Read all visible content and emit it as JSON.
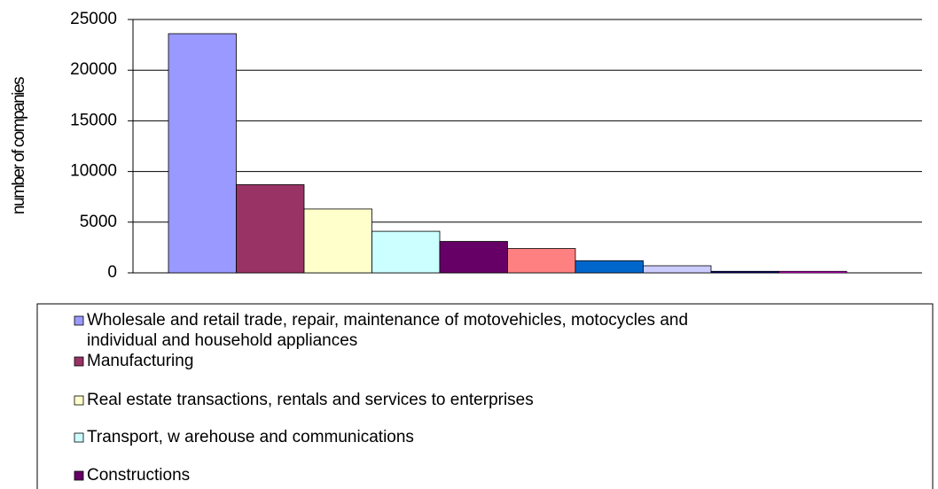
{
  "chart_data": {
    "type": "bar",
    "y_label": "number of companies",
    "categories": [
      null
    ],
    "series": [
      {
        "name": "Wholesale and retail trade, repair, maintenance of motovehicles, motocycles and individual and household appliances",
        "color": "#9999ff",
        "values": [
          23600
        ]
      },
      {
        "name": "Manufacturing",
        "color": "#993366",
        "values": [
          8700
        ]
      },
      {
        "name": "Real estate transactions, rentals and services to enterprises",
        "color": "#ffffcc",
        "values": [
          6300
        ]
      },
      {
        "name": "Transport, w arehouse and communications",
        "color": "#ccffff",
        "values": [
          4100
        ]
      },
      {
        "name": "Constructions",
        "color": "#660066",
        "values": [
          3100
        ]
      },
      {
        "color": "#ff8080",
        "values": [
          2400
        ]
      },
      {
        "color": "#0066cc",
        "values": [
          1200
        ]
      },
      {
        "color": "#ccccff",
        "values": [
          700
        ]
      },
      {
        "color": "#000080",
        "values": [
          150
        ]
      },
      {
        "color": "#ff00ff",
        "values": [
          150
        ]
      }
    ],
    "ylim": [
      0,
      25000
    ],
    "yticks": [
      0,
      5000,
      10000,
      15000,
      20000,
      25000
    ],
    "grid": true
  }
}
